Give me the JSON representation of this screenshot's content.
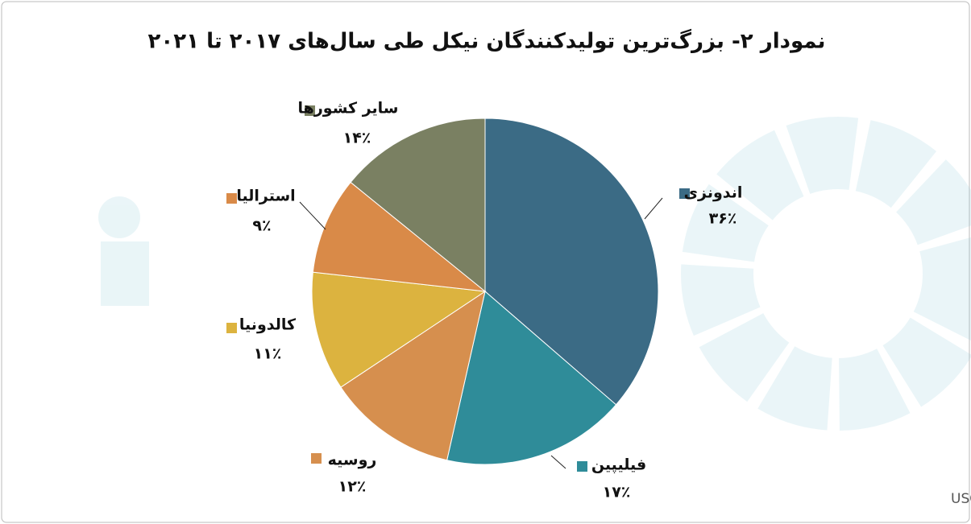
{
  "chart_data": {
    "type": "pie",
    "title": "نمودار ۲- بزرگ‌ترین تولیدکنندگان نیکل طی سال‌های ۲۰۱۷ تا ۲۰۲۱",
    "categories": [
      "اندونزی",
      "فیلیپین",
      "روسیه",
      "کالدونیا",
      "استرالیا",
      "سایر کشورها"
    ],
    "values": [
      36,
      17,
      12,
      11,
      9,
      14
    ],
    "value_labels": [
      "۳۶٪",
      "۱۷٪",
      "۱۲٪",
      "۱۱٪",
      "۹٪",
      "۱۴٪"
    ],
    "colors": [
      "#3b6b85",
      "#2f8c99",
      "#d68f4e",
      "#dcb33f",
      "#d98a48",
      "#7a8062"
    ],
    "source": "منبع: USGS"
  }
}
